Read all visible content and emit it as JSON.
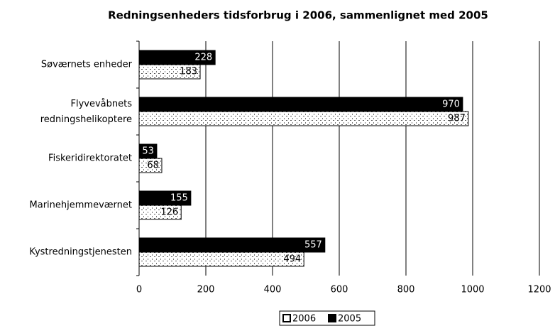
{
  "chart_data": {
    "type": "hbar",
    "title": "Redningsenheders tidsforbrug i 2006, sammenlignet med 2005",
    "categories": [
      "Søværnets enheder",
      "Flyvevåbnets redningshelikoptere",
      "Fiskeridirektoratet",
      "Marinehjemmeværnet",
      "Kystredningstjenesten"
    ],
    "series": [
      {
        "name": "2006",
        "color": "#ffffff",
        "values": [
          183,
          987,
          68,
          126,
          494
        ]
      },
      {
        "name": "2005",
        "color": "#000000",
        "values": [
          228,
          970,
          53,
          155,
          557
        ]
      }
    ],
    "xlim": [
      0,
      1200
    ],
    "xticks": [
      0,
      200,
      400,
      600,
      800,
      1000,
      1200
    ],
    "grid": true,
    "legend": "bottom"
  }
}
